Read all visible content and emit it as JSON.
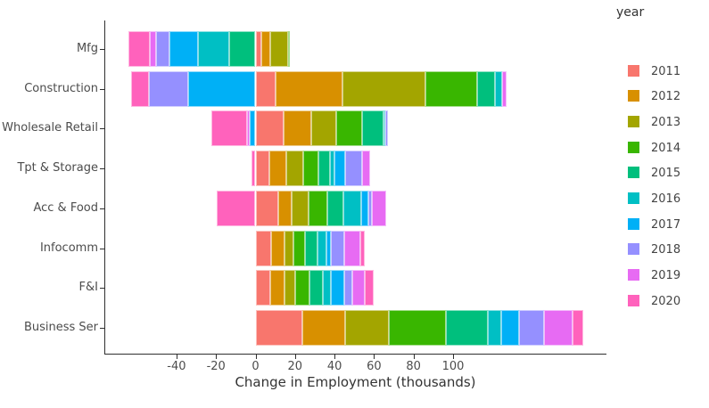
{
  "chart_data": {
    "type": "bar",
    "orientation": "horizontal",
    "stacked": true,
    "title": "",
    "xlabel": "Change in Employment (thousands)",
    "ylabel": "",
    "legend_title": "year",
    "legend_position": "right",
    "grid": false,
    "xlim": [
      -76,
      178
    ],
    "xticks": [
      -40,
      -20,
      0,
      20,
      40,
      60,
      80,
      100
    ],
    "categories": [
      "Mfg",
      "Construction",
      "Wholesale Retail",
      "Tpt & Storage",
      "Acc & Food",
      "Infocomm",
      "F&I",
      "Business Ser"
    ],
    "series": [
      {
        "name": "2011",
        "color": "#F8766D",
        "values": [
          3,
          10,
          14,
          7,
          11.5,
          8,
          7.5,
          23.5
        ]
      },
      {
        "name": "2012",
        "color": "#D89000",
        "values": [
          4.5,
          34,
          14,
          8.5,
          7,
          6.5,
          7,
          22
        ]
      },
      {
        "name": "2013",
        "color": "#A3A500",
        "values": [
          9,
          42,
          13,
          8.5,
          8.5,
          4.5,
          5.5,
          22
        ]
      },
      {
        "name": "2014",
        "color": "#39B600",
        "values": [
          1,
          26,
          13,
          8,
          9.5,
          6,
          7.5,
          29
        ]
      },
      {
        "name": "2015",
        "color": "#00BF7D",
        "values": [
          -13.5,
          9,
          11,
          5.5,
          8,
          6.5,
          6.5,
          21
        ]
      },
      {
        "name": "2016",
        "color": "#00BFC4",
        "values": [
          -15.5,
          4,
          0.5,
          2.5,
          9,
          4.5,
          4,
          7
        ]
      },
      {
        "name": "2017",
        "color": "#00B0F6",
        "values": [
          -14.5,
          -34,
          -3,
          5.5,
          3.5,
          2,
          7,
          9
        ]
      },
      {
        "name": "2018",
        "color": "#9590FF",
        "values": [
          -7,
          -20,
          1.5,
          8.5,
          2,
          7,
          4,
          12.5
        ]
      },
      {
        "name": "2019",
        "color": "#E76BF3",
        "values": [
          -3,
          2,
          -1.5,
          4,
          7,
          8,
          6.5,
          14.5
        ]
      },
      {
        "name": "2020",
        "color": "#FF62BC",
        "values": [
          -11,
          -9,
          -18,
          -2,
          -19.5,
          2.5,
          4.5,
          5.5
        ]
      }
    ]
  }
}
